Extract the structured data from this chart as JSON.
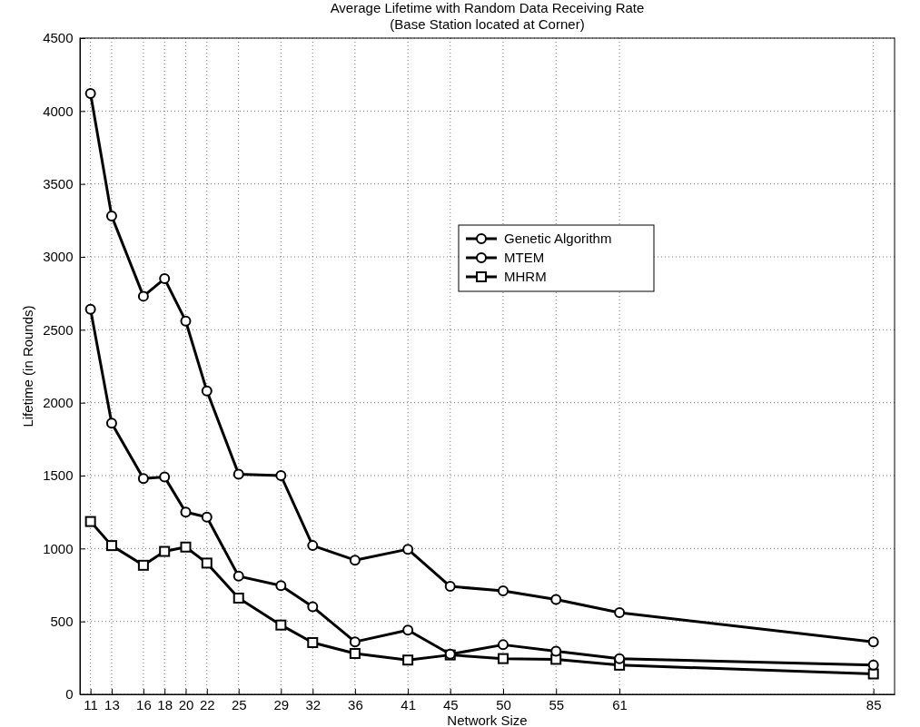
{
  "chart_data": {
    "type": "line",
    "title": "Average Lifetime with Random Data Receiving Rate\n(Base Station located at Corner)",
    "xlabel": "Network Size",
    "ylabel": "Lifetime (in Rounds)",
    "x": [
      11,
      13,
      16,
      18,
      20,
      22,
      25,
      29,
      32,
      36,
      41,
      45,
      50,
      55,
      61,
      85
    ],
    "xlim": [
      10,
      87
    ],
    "xticks": [
      11,
      13,
      16,
      18,
      20,
      22,
      25,
      29,
      32,
      36,
      41,
      45,
      50,
      55,
      61,
      85
    ],
    "ylim": [
      0,
      4500
    ],
    "yticks": [
      0,
      500,
      1000,
      1500,
      2000,
      2500,
      3000,
      3500,
      4000,
      4500
    ],
    "grid": true,
    "legend": "right",
    "line_style": "solid",
    "series": [
      {
        "name": "Genetic Algorithm",
        "color": "#000000",
        "marker": "circle",
        "values": [
          4120,
          3280,
          2730,
          2850,
          2560,
          2080,
          1510,
          1500,
          1020,
          920,
          995,
          740,
          710,
          650,
          560,
          360
        ]
      },
      {
        "name": "MTEM",
        "color": "#000000",
        "marker": "circle",
        "values": [
          2640,
          1860,
          1480,
          1490,
          1250,
          1215,
          810,
          745,
          600,
          360,
          440,
          275,
          340,
          295,
          245,
          200
        ]
      },
      {
        "name": "MHRM",
        "color": "#000000",
        "marker": "square",
        "values": [
          1185,
          1020,
          885,
          980,
          1010,
          900,
          660,
          475,
          355,
          280,
          235,
          270,
          245,
          240,
          200,
          140
        ]
      }
    ]
  }
}
